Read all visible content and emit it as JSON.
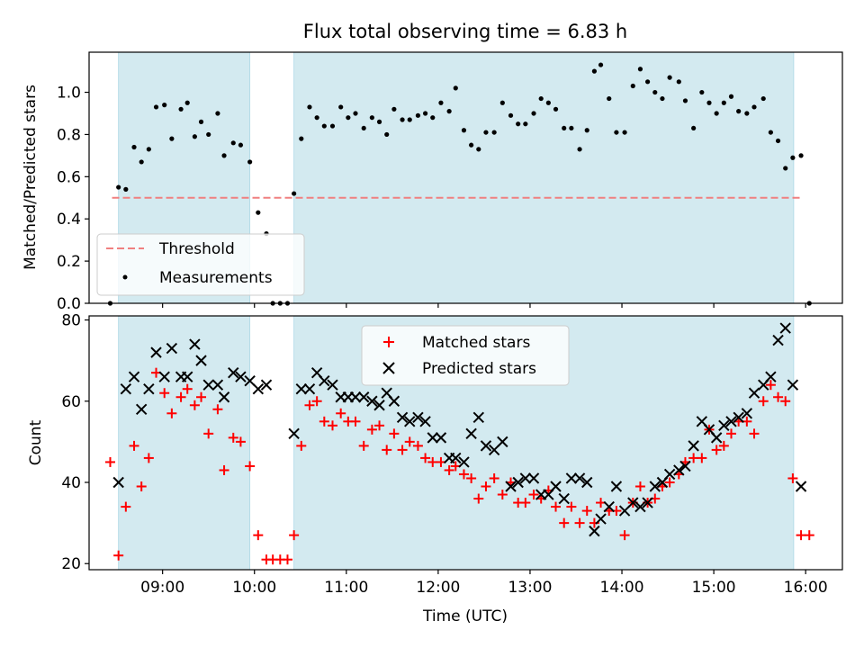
{
  "chart_data": [
    {
      "type": "scatter",
      "title": "Flux total observing time = 6.83 h",
      "xlabel": "",
      "ylabel": "Matched/Predicted stars",
      "xlim": [
        8.2,
        16.4
      ],
      "ylim": [
        0.0,
        1.19
      ],
      "yticks": [
        0.0,
        0.2,
        0.4,
        0.6,
        0.8,
        1.0
      ],
      "ytick_labels": [
        "0.0",
        "0.2",
        "0.4",
        "0.6",
        "0.8",
        "1.0"
      ],
      "shaded_intervals": [
        [
          8.52,
          9.95
        ],
        [
          10.43,
          15.87
        ]
      ],
      "shade_color": "#d3eaf0",
      "threshold": {
        "label": "Threshold",
        "value": 0.5,
        "x_range": [
          8.45,
          15.95
        ],
        "color": "#f08080"
      },
      "measurements": {
        "label": "Measurements",
        "color": "#000000",
        "x": [
          8.43,
          8.52,
          8.6,
          8.69,
          8.77,
          8.85,
          8.93,
          9.02,
          9.1,
          9.2,
          9.27,
          9.35,
          9.42,
          9.5,
          9.6,
          9.67,
          9.77,
          9.85,
          9.95,
          10.04,
          10.13,
          10.2,
          10.28,
          10.36,
          10.43,
          10.51,
          10.6,
          10.68,
          10.76,
          10.85,
          10.94,
          11.02,
          11.1,
          11.19,
          11.28,
          11.36,
          11.44,
          11.52,
          11.61,
          11.69,
          11.78,
          11.86,
          11.94,
          12.03,
          12.12,
          12.19,
          12.28,
          12.36,
          12.44,
          12.52,
          12.61,
          12.7,
          12.79,
          12.87,
          12.95,
          13.04,
          13.12,
          13.2,
          13.28,
          13.37,
          13.45,
          13.54,
          13.62,
          13.7,
          13.77,
          13.86,
          13.94,
          14.03,
          14.12,
          14.2,
          14.28,
          14.36,
          14.44,
          14.52,
          14.62,
          14.69,
          14.78,
          14.87,
          14.95,
          15.03,
          15.11,
          15.19,
          15.27,
          15.36,
          15.44,
          15.54,
          15.62,
          15.7,
          15.78,
          15.86,
          15.95,
          16.04
        ],
        "y": [
          0.0,
          0.55,
          0.54,
          0.74,
          0.67,
          0.73,
          0.93,
          0.94,
          0.78,
          0.92,
          0.95,
          0.79,
          0.86,
          0.8,
          0.9,
          0.7,
          0.76,
          0.75,
          0.67,
          0.43,
          0.33,
          0.0,
          0.0,
          0.0,
          0.52,
          0.78,
          0.93,
          0.88,
          0.84,
          0.84,
          0.93,
          0.88,
          0.9,
          0.83,
          0.88,
          0.86,
          0.8,
          0.92,
          0.87,
          0.87,
          0.89,
          0.9,
          0.88,
          0.95,
          0.91,
          1.02,
          0.82,
          0.75,
          0.73,
          0.81,
          0.81,
          0.95,
          0.89,
          0.85,
          0.85,
          0.9,
          0.97,
          0.95,
          0.92,
          0.83,
          0.83,
          0.73,
          0.82,
          1.1,
          1.13,
          0.97,
          0.81,
          0.81,
          1.03,
          1.11,
          1.05,
          1.0,
          0.97,
          1.07,
          1.05,
          0.96,
          0.83,
          1.0,
          0.95,
          0.9,
          0.95,
          0.98,
          0.91,
          0.9,
          0.93,
          0.97,
          0.81,
          0.77,
          0.64,
          0.69,
          0.7,
          0.0
        ]
      }
    },
    {
      "type": "scatter",
      "title": "",
      "xlabel": "Time (UTC)",
      "ylabel": "Count",
      "xlim": [
        8.2,
        16.4
      ],
      "ylim": [
        18.5,
        81
      ],
      "yticks": [
        20,
        40,
        60,
        80
      ],
      "ytick_labels": [
        "20",
        "40",
        "60",
        "80"
      ],
      "xticks": [
        9,
        10,
        11,
        12,
        13,
        14,
        15,
        16
      ],
      "xtick_labels": [
        "09:00",
        "10:00",
        "11:00",
        "12:00",
        "13:00",
        "14:00",
        "15:00",
        "16:00"
      ],
      "shaded_intervals": [
        [
          8.52,
          9.95
        ],
        [
          10.43,
          15.87
        ]
      ],
      "shade_color": "#d3eaf0",
      "series": [
        {
          "name": "Matched stars",
          "marker": "plus",
          "color": "#ff0000",
          "x": [
            8.43,
            8.52,
            8.6,
            8.69,
            8.77,
            8.85,
            8.93,
            9.02,
            9.1,
            9.2,
            9.27,
            9.35,
            9.42,
            9.5,
            9.6,
            9.67,
            9.77,
            9.85,
            9.95,
            10.04,
            10.13,
            10.2,
            10.28,
            10.36,
            10.43,
            10.51,
            10.6,
            10.68,
            10.76,
            10.85,
            10.94,
            11.02,
            11.1,
            11.19,
            11.28,
            11.36,
            11.44,
            11.52,
            11.61,
            11.69,
            11.78,
            11.86,
            11.94,
            12.03,
            12.12,
            12.19,
            12.28,
            12.36,
            12.44,
            12.52,
            12.61,
            12.7,
            12.79,
            12.87,
            12.95,
            13.04,
            13.12,
            13.2,
            13.28,
            13.37,
            13.45,
            13.54,
            13.62,
            13.7,
            13.77,
            13.86,
            13.94,
            14.03,
            14.12,
            14.2,
            14.28,
            14.36,
            14.44,
            14.52,
            14.62,
            14.69,
            14.78,
            14.87,
            14.95,
            15.03,
            15.11,
            15.19,
            15.27,
            15.36,
            15.44,
            15.54,
            15.62,
            15.7,
            15.78,
            15.86,
            15.95,
            16.04
          ],
          "y": [
            45,
            22,
            34,
            49,
            39,
            46,
            67,
            62,
            57,
            61,
            63,
            59,
            61,
            52,
            58,
            43,
            51,
            50,
            44,
            27,
            21,
            21,
            21,
            21,
            27,
            49,
            59,
            60,
            55,
            54,
            57,
            55,
            55,
            49,
            53,
            54,
            48,
            52,
            48,
            50,
            49,
            46,
            45,
            45,
            43,
            44,
            42,
            41,
            36,
            39,
            41,
            37,
            40,
            35,
            35,
            37,
            36,
            38,
            34,
            30,
            34,
            30,
            33,
            30,
            35,
            33,
            33,
            27,
            35,
            39,
            35,
            36,
            39,
            40,
            42,
            45,
            46,
            46,
            53,
            48,
            49,
            52,
            55,
            55,
            52,
            60,
            64,
            61,
            60,
            41,
            27,
            27
          ]
        },
        {
          "name": "Predicted stars",
          "marker": "x",
          "color": "#000000",
          "x": [
            8.52,
            8.6,
            8.69,
            8.77,
            8.85,
            8.93,
            9.02,
            9.1,
            9.2,
            9.27,
            9.35,
            9.42,
            9.5,
            9.6,
            9.67,
            9.77,
            9.85,
            9.95,
            10.04,
            10.13,
            10.43,
            10.51,
            10.6,
            10.68,
            10.76,
            10.85,
            10.94,
            11.02,
            11.1,
            11.19,
            11.28,
            11.36,
            11.44,
            11.52,
            11.61,
            11.69,
            11.78,
            11.86,
            11.94,
            12.03,
            12.12,
            12.19,
            12.28,
            12.36,
            12.44,
            12.52,
            12.61,
            12.7,
            12.79,
            12.87,
            12.95,
            13.04,
            13.12,
            13.2,
            13.28,
            13.37,
            13.45,
            13.54,
            13.62,
            13.7,
            13.77,
            13.86,
            13.94,
            14.03,
            14.12,
            14.2,
            14.28,
            14.36,
            14.44,
            14.52,
            14.62,
            14.69,
            14.78,
            14.87,
            14.95,
            15.03,
            15.11,
            15.19,
            15.27,
            15.36,
            15.44,
            15.54,
            15.62,
            15.7,
            15.78,
            15.86,
            15.95
          ],
          "y": [
            40,
            63,
            66,
            58,
            63,
            72,
            66,
            73,
            66,
            66,
            74,
            70,
            64,
            64,
            61,
            67,
            66,
            65,
            63,
            64,
            52,
            63,
            63,
            67,
            65,
            64,
            61,
            61,
            61,
            61,
            60,
            59,
            62,
            60,
            56,
            55,
            56,
            55,
            51,
            51,
            46,
            46,
            45,
            52,
            56,
            49,
            48,
            50,
            39,
            40,
            41,
            41,
            37,
            37,
            39,
            36,
            41,
            41,
            40,
            28,
            31,
            34,
            39,
            33,
            35,
            34,
            35,
            39,
            40,
            42,
            43,
            44,
            49,
            55,
            53,
            51,
            54,
            55,
            56,
            57,
            62,
            64,
            66,
            75,
            78,
            64,
            39
          ]
        }
      ]
    }
  ]
}
